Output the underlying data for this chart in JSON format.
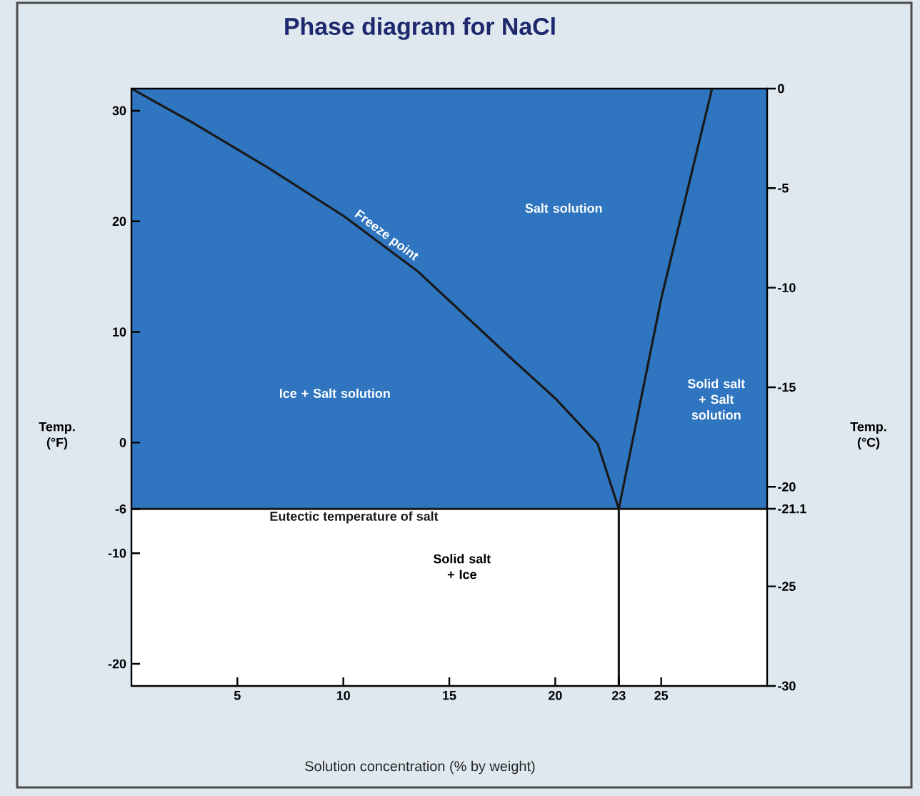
{
  "chart_data": {
    "type": "line",
    "title": "Phase diagram for NaCl",
    "xlabel": "Solution concentration (% by weight)",
    "ylabel": "Temp. (°F)",
    "y2label": "Temp. (°C)",
    "xlim": [
      0,
      30
    ],
    "xticks": [
      5,
      10,
      15,
      20,
      23,
      25
    ],
    "ylim": [
      -22,
      32
    ],
    "yticks": [
      30,
      20,
      10,
      0,
      -6,
      -10,
      -20
    ],
    "y2lim": [
      -30,
      0
    ],
    "y2ticks": [
      0,
      -5,
      -10,
      -15,
      -20,
      -21.1,
      -25,
      -30
    ],
    "grid": false,
    "series": [
      {
        "name": "Freeze point",
        "color": "#1a1a1a",
        "x": [
          0,
          3,
          6.4,
          10,
          13.5,
          17.7,
          20,
          22,
          23
        ],
        "values": [
          32,
          28.8,
          24.9,
          20.5,
          15.5,
          8,
          4,
          -0.1,
          -6
        ]
      },
      {
        "color": "#1a1a1a",
        "x": [
          23,
          23,
          25,
          27.4
        ],
        "values": [
          -22,
          -6,
          13,
          32
        ]
      }
    ],
    "ref_lines": [
      {
        "axis": "y",
        "value": -6,
        "label": "Eutectic temperature of salt",
        "color": "#1a1a1a"
      }
    ],
    "bands": [
      {
        "axis": "y",
        "from": -6,
        "to": 32,
        "color": "#2f75c0"
      },
      {
        "axis": "y",
        "from": -22,
        "to": -6,
        "color": "#ffffff"
      }
    ],
    "annotations": [
      "Salt solution",
      "Ice + Salt solution",
      "Solid salt + Salt solution",
      "Solid salt + Ice"
    ]
  }
}
